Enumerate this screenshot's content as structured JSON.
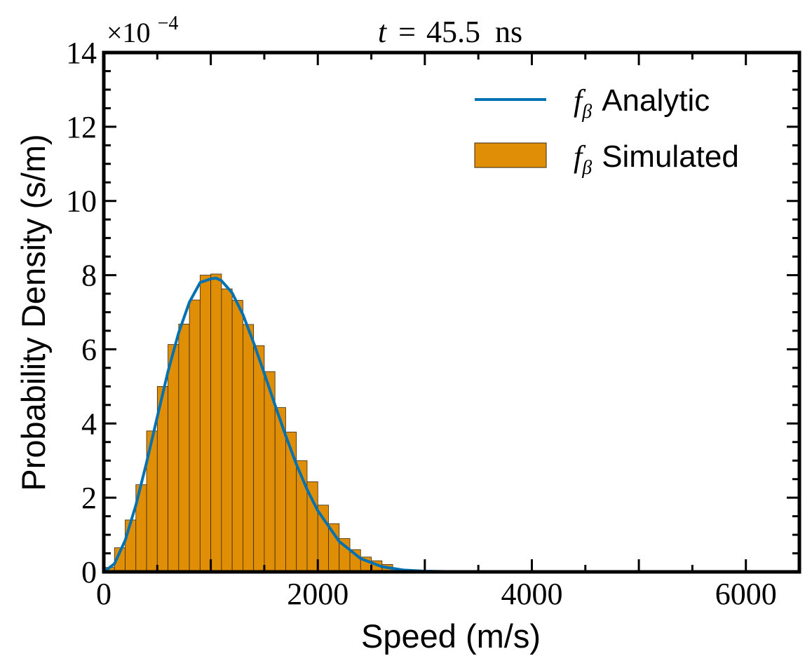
{
  "chart_data": {
    "type": "bar",
    "title": {
      "prefix": "t",
      "operator": "=",
      "value": "45.5",
      "unit": "ns"
    },
    "xlabel": "Speed (m/s)",
    "ylabel": "Probability Density (s/m)",
    "xlim": [
      0,
      6500
    ],
    "ylim": [
      0,
      0.0014
    ],
    "x_ticks": [
      0,
      2000,
      4000,
      6000
    ],
    "x_tick_labels": [
      "0",
      "2000",
      "4000",
      "6000"
    ],
    "y_ticks": [
      0,
      2,
      4,
      6,
      8,
      10,
      12,
      14
    ],
    "y_tick_labels": [
      "0",
      "2",
      "4",
      "6",
      "8",
      "10",
      "12",
      "14"
    ],
    "y_offset": {
      "base": "×10",
      "exponent": "−4"
    },
    "grid": false,
    "legend_position": "top-right",
    "legend": [
      {
        "symbol": "f",
        "subscript": "β",
        "label": "Analytic",
        "kind": "line"
      },
      {
        "symbol": "f",
        "subscript": "β",
        "label": "Simulated",
        "kind": "bar"
      }
    ],
    "colors": {
      "bars": "#E08E05",
      "bar_edge": "#3a2a10",
      "line": "#0072B2",
      "axes": "#000000"
    },
    "histogram": {
      "bin_width": 100,
      "bin_starts": [
        0,
        100,
        200,
        300,
        400,
        500,
        600,
        700,
        800,
        900,
        1000,
        1100,
        1200,
        1300,
        1400,
        1500,
        1600,
        1700,
        1800,
        1900,
        2000,
        2100,
        2200,
        2300,
        2400,
        2500,
        2600
      ],
      "values": [
        1.2e-05,
        6.5e-05,
        0.00014,
        0.000235,
        0.00038,
        0.0005,
        0.000613,
        0.000668,
        0.000733,
        0.0008,
        0.000803,
        0.000763,
        0.000732,
        0.000667,
        0.00061,
        0.00054,
        0.000443,
        0.000377,
        0.0003,
        0.000243,
        0.00018,
        0.00013,
        9e-05,
        6e-05,
        4e-05,
        3e-05,
        2e-05
      ]
    },
    "analytic": {
      "x": [
        0,
        100,
        200,
        300,
        400,
        500,
        600,
        700,
        800,
        900,
        1000,
        1050,
        1100,
        1200,
        1300,
        1400,
        1500,
        1600,
        1700,
        1800,
        1900,
        2000,
        2200,
        2400,
        2600,
        2800,
        3000,
        3200,
        3500,
        4000
      ],
      "y": [
        0.0,
        2.2e-05,
        8.5e-05,
        0.00018,
        0.000295,
        0.000418,
        0.00054,
        0.000645,
        0.000727,
        0.00078,
        0.00079,
        0.000792,
        0.000785,
        0.000752,
        0.000694,
        0.000618,
        0.000535,
        0.00045,
        0.000367,
        0.00029,
        0.000222,
        0.000165,
        8.2e-05,
        3.6e-05,
        1.4e-05,
        5e-06,
        2e-06,
        1e-06,
        0.0,
        0.0
      ]
    }
  }
}
